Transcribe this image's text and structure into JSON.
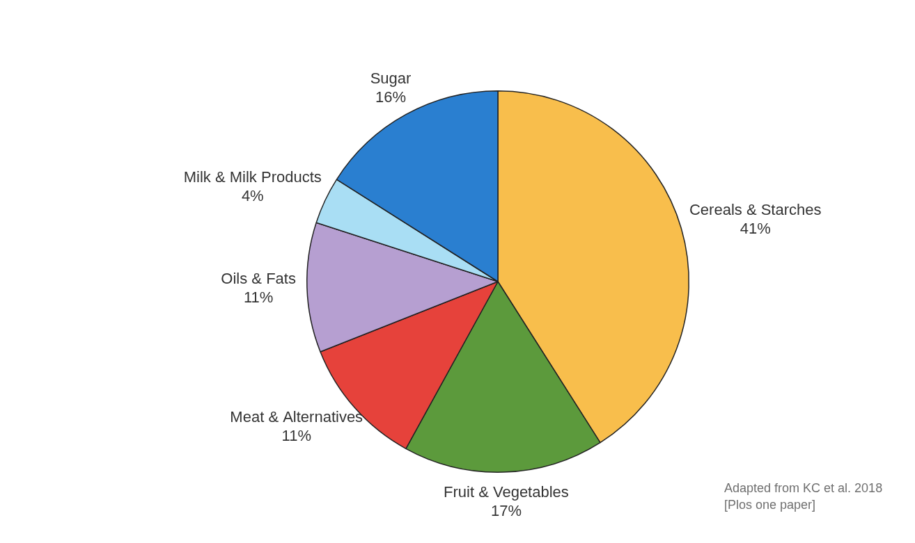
{
  "chart_data": {
    "type": "pie",
    "categories": [
      "Cereals & Starches",
      "Fruit & Vegetables",
      "Meat & Alternatives",
      "Oils & Fats",
      "Milk & Milk Products",
      "Sugar"
    ],
    "values": [
      41,
      17,
      11,
      11,
      4,
      16
    ],
    "value_labels": [
      "41%",
      "17%",
      "11%",
      "11%",
      "4%",
      "16%"
    ],
    "colors": [
      "#f8be4c",
      "#5c9a3c",
      "#e6423b",
      "#b69fd1",
      "#a9def4",
      "#2a7fd0"
    ],
    "data_labels": true,
    "annotations": [
      "Adapted from KC et al. 2018 [Plos one paper]"
    ]
  }
}
